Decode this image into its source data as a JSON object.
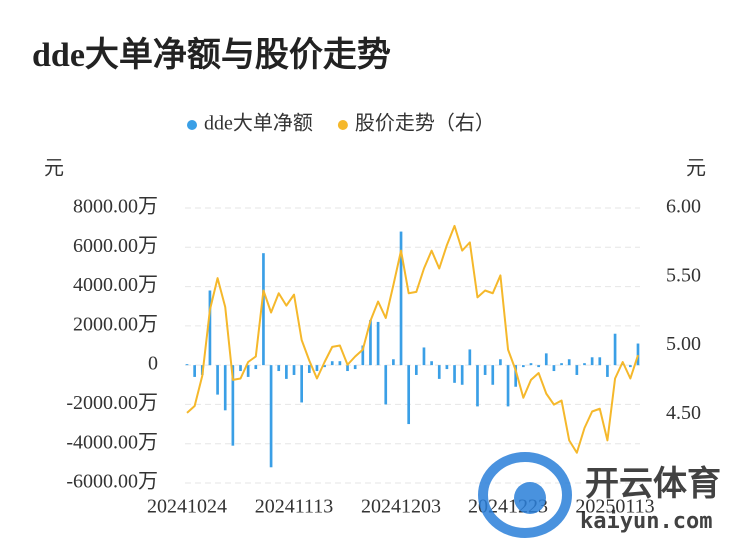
{
  "chart_data": {
    "type": "bar",
    "title": "dde大单净额与股价走势",
    "y_unit": "元",
    "y2_unit": "元",
    "categories": [
      "20241024",
      null,
      null,
      null,
      null,
      null,
      null,
      null,
      null,
      null,
      null,
      null,
      null,
      null,
      "20241113",
      null,
      null,
      null,
      null,
      null,
      null,
      null,
      null,
      null,
      null,
      null,
      null,
      null,
      "20241203",
      null,
      null,
      null,
      null,
      null,
      null,
      null,
      null,
      null,
      null,
      null,
      null,
      null,
      "20241223",
      null,
      null,
      null,
      null,
      null,
      null,
      null,
      null,
      null,
      null,
      null,
      null,
      null,
      "20250113",
      null,
      null,
      null
    ],
    "series": [
      {
        "name": "dde大单净额",
        "type": "bar",
        "color": "#3a9fe6",
        "values": [
          50,
          -600,
          -500,
          3800,
          -1500,
          -2300,
          -4100,
          -300,
          -600,
          -200,
          5700,
          -5200,
          -300,
          -700,
          -500,
          -1900,
          -400,
          -300,
          -100,
          200,
          200,
          -300,
          -200,
          1000,
          2300,
          2200,
          -2000,
          300,
          6800,
          -3000,
          -500,
          900,
          200,
          -700,
          -200,
          -900,
          -1000,
          800,
          -2100,
          -500,
          -1000,
          300,
          -2100,
          -1100,
          -100,
          100,
          -100,
          600,
          -300,
          100,
          300,
          -500,
          100,
          400,
          400,
          -600,
          1600,
          100,
          -100,
          1100
        ]
      },
      {
        "name": "股价走势（右）",
        "type": "line",
        "axis": "y2",
        "color": "#f5b82b",
        "values": [
          4.51,
          4.56,
          4.78,
          5.26,
          5.49,
          5.28,
          4.75,
          4.76,
          4.88,
          4.92,
          5.4,
          5.24,
          5.38,
          5.29,
          5.37,
          5.04,
          4.89,
          4.76,
          4.88,
          4.99,
          5.0,
          4.86,
          4.92,
          4.97,
          5.18,
          5.32,
          5.2,
          5.44,
          5.69,
          5.38,
          5.39,
          5.56,
          5.69,
          5.56,
          5.73,
          5.87,
          5.69,
          5.75,
          5.35,
          5.4,
          5.38,
          5.51,
          4.97,
          4.82,
          4.62,
          4.75,
          4.8,
          4.65,
          4.57,
          4.6,
          4.31,
          4.22,
          4.4,
          4.52,
          4.54,
          4.31,
          4.76,
          4.88,
          4.76,
          4.93
        ]
      }
    ],
    "ylim": [
      -6000,
      8000
    ],
    "yticks": [
      {
        "value": -6000,
        "label": "-6000.00万"
      },
      {
        "value": -4000,
        "label": "-4000.00万"
      },
      {
        "value": -2000,
        "label": "-2000.00万"
      },
      0,
      {
        "value": 2000,
        "label": "2000.00万"
      },
      {
        "value": 4000,
        "label": "4000.00万"
      },
      {
        "value": 6000,
        "label": "6000.00万"
      },
      {
        "value": 8000,
        "label": "8000.00万"
      }
    ],
    "y2lim": [
      4.0,
      6.0
    ],
    "y2ticks": [
      {
        "value": 4.5,
        "label": "4.50"
      },
      {
        "value": 5.0,
        "label": "5.00"
      },
      {
        "value": 5.5,
        "label": "5.50"
      },
      {
        "value": 6.0,
        "label": "6.00"
      }
    ],
    "grid": true,
    "legend": "top",
    "watermark": [
      "开云体育",
      "kaiyun.com"
    ]
  }
}
